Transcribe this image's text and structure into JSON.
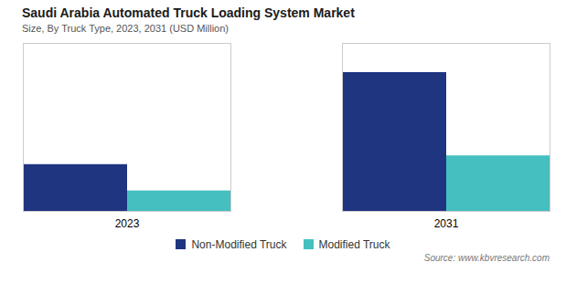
{
  "chart_data": {
    "type": "bar",
    "title": "Saudi Arabia Automated Truck Loading System Market",
    "subtitle": "Size, By Truck Type, 2023, 2031 (USD Million)",
    "categories": [
      "2023",
      "2031"
    ],
    "series": [
      {
        "name": "Non-Modified Truck",
        "color": "#1f3580",
        "values": [
          3.2,
          9.5
        ]
      },
      {
        "name": "Modified Truck",
        "color": "#45bfbf",
        "values": [
          1.4,
          3.8
        ]
      }
    ],
    "ylim": [
      0,
      11.5
    ],
    "tick_labels": "x",
    "grid": false,
    "legend": "bottom",
    "annotations": [
      "Source: www.kbvresearch.com"
    ]
  }
}
